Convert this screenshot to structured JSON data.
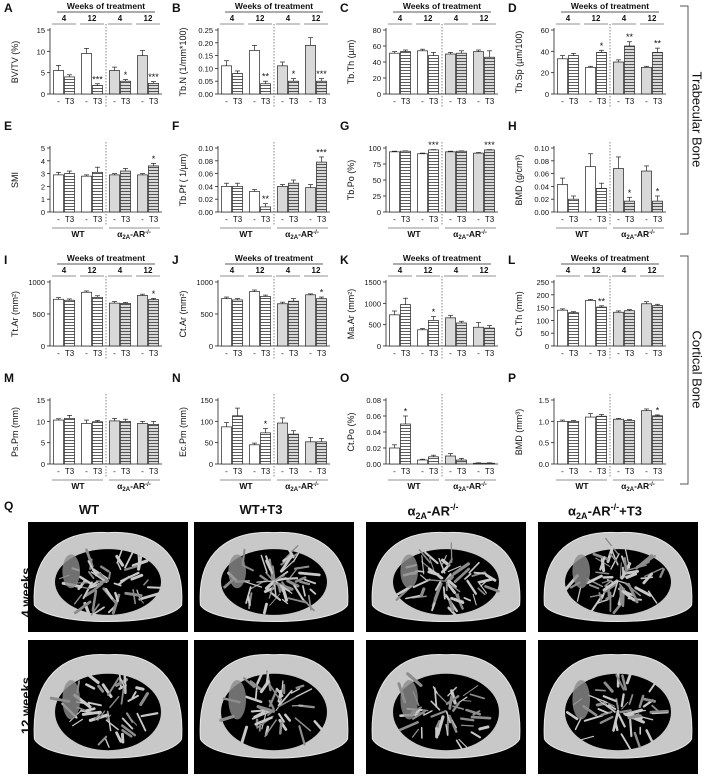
{
  "section_labels": {
    "trabecular": "Trabecular Bone",
    "cortical": "Cortical Bone"
  },
  "group_labels": {
    "wt": "WT",
    "ko": "α2A-AR-/-",
    "ko_base": "α",
    "ko_sub": "2A",
    "ko_mid": "-AR",
    "ko_sup": "-/-"
  },
  "timing": {
    "header": "Weeks of treatment",
    "w4": "4",
    "w12": "12"
  },
  "treatment_labels": {
    "ctrl": "-",
    "t3": "T3"
  },
  "colors": {
    "wt_bar": "#ffffff",
    "ko_bar": "#d9d9d9",
    "t3_hatch": "#333333",
    "axis": "#222222",
    "bone_light": "#c8c8c8",
    "bone_dark": "#8c8c8c",
    "background": "#000000"
  },
  "chart_data": [
    {
      "panel": "A",
      "type": "bar",
      "ylabel": "BV/TV (%)",
      "ylim": [
        0,
        15
      ],
      "yticks": [
        "0",
        "5",
        "10",
        "15"
      ],
      "has_weeks_header": true,
      "has_group_labels": false,
      "values": [
        5.5,
        4,
        9.5,
        2,
        5.5,
        3,
        9,
        2.5
      ],
      "errors": [
        1.2,
        0.5,
        1.2,
        0.4,
        0.8,
        0.4,
        1.2,
        0.4
      ],
      "sig": [
        "",
        "",
        "",
        "***",
        "",
        "*",
        "",
        "***"
      ]
    },
    {
      "panel": "B",
      "type": "bar",
      "ylabel": "Tb.N (1/mm*100)",
      "ylim": [
        0,
        0.25
      ],
      "yticks": [
        "0.00",
        "0.05",
        "0.10",
        "0.15",
        "0.20",
        "0.25"
      ],
      "has_weeks_header": true,
      "has_group_labels": false,
      "values": [
        0.11,
        0.08,
        0.17,
        0.04,
        0.11,
        0.05,
        0.19,
        0.05
      ],
      "errors": [
        0.02,
        0.01,
        0.02,
        0.01,
        0.015,
        0.01,
        0.03,
        0.01
      ],
      "sig": [
        "",
        "",
        "",
        "**",
        "",
        "*",
        "",
        "***"
      ]
    },
    {
      "panel": "C",
      "type": "bar",
      "ylabel": "Tb.Th (µm)",
      "ylim": [
        0,
        80
      ],
      "yticks": [
        "0",
        "20",
        "40",
        "60",
        "80"
      ],
      "has_weeks_header": true,
      "has_group_labels": false,
      "values": [
        51,
        53,
        54,
        48,
        50,
        51,
        53,
        46
      ],
      "errors": [
        2,
        2,
        2,
        4,
        2,
        3,
        2,
        8
      ],
      "sig": [
        "",
        "",
        "",
        "",
        "",
        "",
        "",
        ""
      ]
    },
    {
      "panel": "D",
      "type": "bar",
      "ylabel": "Tb.Sp (µm/100)",
      "ylim": [
        0,
        60
      ],
      "yticks": [
        "0",
        "20",
        "40",
        "60"
      ],
      "has_weeks_header": true,
      "has_group_labels": false,
      "values": [
        33,
        36,
        25,
        39,
        30,
        45,
        25,
        39
      ],
      "errors": [
        3,
        2,
        1,
        2,
        2,
        4,
        1,
        4
      ],
      "sig": [
        "",
        "",
        "",
        "*",
        "",
        "**",
        "",
        "**"
      ]
    },
    {
      "panel": "E",
      "type": "bar",
      "ylabel": "SMI",
      "ylim": [
        0,
        5
      ],
      "yticks": [
        "0",
        "1",
        "2",
        "3",
        "4",
        "5"
      ],
      "has_weeks_header": false,
      "has_group_labels": false,
      "values": [
        2.9,
        3.0,
        2.8,
        3.1,
        2.9,
        3.2,
        2.9,
        3.6
      ],
      "errors": [
        0.2,
        0.2,
        0.1,
        0.4,
        0.1,
        0.2,
        0.1,
        0.2
      ],
      "sig": [
        "",
        "",
        "",
        "",
        "",
        "",
        "",
        "*"
      ]
    },
    {
      "panel": "F",
      "type": "bar",
      "ylabel": "Tb.Pf ( 1/µm)",
      "ylim": [
        0,
        0.1
      ],
      "yticks": [
        "0.00",
        "0.02",
        "0.04",
        "0.06",
        "0.08",
        "0.10"
      ],
      "has_weeks_header": false,
      "has_group_labels": false,
      "values": [
        0.04,
        0.04,
        0.032,
        0.008,
        0.04,
        0.045,
        0.038,
        0.078
      ],
      "errors": [
        0.005,
        0.005,
        0.003,
        0.005,
        0.003,
        0.005,
        0.005,
        0.008
      ],
      "sig": [
        "",
        "",
        "",
        "**",
        "",
        "",
        "",
        "***"
      ]
    },
    {
      "panel": "G",
      "type": "bar",
      "ylabel": "Tb.Po (%)",
      "ylim": [
        0,
        100
      ],
      "yticks": [
        "0",
        "25",
        "50",
        "75",
        "100"
      ],
      "has_weeks_header": false,
      "has_group_labels": false,
      "values": [
        94,
        95,
        91,
        97,
        94,
        95,
        92,
        97
      ],
      "errors": [
        1,
        0.5,
        1,
        0.5,
        1,
        0.5,
        1,
        0.5
      ],
      "sig": [
        "",
        "",
        "",
        "***",
        "",
        "",
        "",
        "***"
      ]
    },
    {
      "panel": "H",
      "type": "bar",
      "ylabel": "BMD (g/cm³)",
      "ylim": [
        0,
        0.1
      ],
      "yticks": [
        "0.00",
        "0.02",
        "0.04",
        "0.06",
        "0.08",
        "0.10"
      ],
      "has_weeks_header": false,
      "has_group_labels": false,
      "values": [
        0.043,
        0.02,
        0.071,
        0.037,
        0.068,
        0.017,
        0.064,
        0.017
      ],
      "errors": [
        0.01,
        0.005,
        0.02,
        0.008,
        0.018,
        0.006,
        0.008,
        0.008
      ],
      "sig": [
        "",
        "",
        "",
        "",
        "",
        "*",
        "",
        "*"
      ]
    },
    {
      "panel": "I",
      "type": "bar",
      "ylabel": "Tt.Ar (mm²)",
      "ylim": [
        0,
        1000
      ],
      "yticks": [
        "0",
        "500",
        "1000"
      ],
      "has_weeks_header": true,
      "has_group_labels": false,
      "values": [
        730,
        715,
        840,
        760,
        670,
        665,
        790,
        725
      ],
      "errors": [
        25,
        20,
        20,
        25,
        25,
        15,
        20,
        20
      ],
      "sig": [
        "",
        "",
        "",
        "",
        "",
        "",
        "",
        "*"
      ]
    },
    {
      "panel": "J",
      "type": "bar",
      "ylabel": "Ct.Ar (mm²)",
      "ylim": [
        0,
        1000
      ],
      "yticks": [
        "0",
        "500",
        "1000"
      ],
      "has_weeks_header": true,
      "has_group_labels": false,
      "values": [
        740,
        720,
        850,
        775,
        660,
        700,
        800,
        740
      ],
      "errors": [
        25,
        20,
        25,
        20,
        25,
        40,
        15,
        25
      ],
      "sig": [
        "",
        "",
        "",
        "",
        "",
        "",
        "",
        "*"
      ]
    },
    {
      "panel": "K",
      "type": "bar",
      "ylabel": "Ma.Ar (mm²)",
      "ylim": [
        0,
        1500
      ],
      "yticks": [
        "0",
        "500",
        "1000",
        "1500"
      ],
      "has_weeks_header": true,
      "has_group_labels": false,
      "values": [
        730,
        970,
        380,
        600,
        660,
        540,
        440,
        420
      ],
      "errors": [
        90,
        150,
        30,
        90,
        60,
        40,
        110,
        60
      ],
      "sig": [
        "",
        "",
        "",
        "*",
        "",
        "",
        "",
        ""
      ]
    },
    {
      "panel": "L",
      "type": "bar",
      "ylabel": "Ct.Th (mm)",
      "ylim": [
        0,
        250
      ],
      "yticks": [
        "0",
        "50",
        "100",
        "150",
        "200",
        "250"
      ],
      "has_weeks_header": true,
      "has_group_labels": false,
      "values": [
        140,
        130,
        178,
        152,
        132,
        138,
        165,
        158
      ],
      "errors": [
        5,
        4,
        4,
        5,
        5,
        4,
        8,
        5
      ],
      "sig": [
        "",
        "",
        "",
        "**",
        "",
        "",
        "",
        ""
      ]
    },
    {
      "panel": "M",
      "type": "bar",
      "ylabel": "Ps.Pm (mm)",
      "ylim": [
        0,
        15
      ],
      "yticks": [
        "0",
        "5",
        "10",
        "15"
      ],
      "has_weeks_header": false,
      "has_group_labels": true,
      "values": [
        10.3,
        10.7,
        9.5,
        9.9,
        10.1,
        10.0,
        9.5,
        9.3
      ],
      "errors": [
        0.3,
        0.7,
        0.8,
        0.3,
        0.6,
        0.5,
        0.5,
        0.7
      ],
      "sig": [
        "",
        "",
        "",
        "",
        "",
        "",
        "",
        ""
      ]
    },
    {
      "panel": "N",
      "type": "bar",
      "ylabel": "Ec.Pm (mm)",
      "ylim": [
        0,
        150
      ],
      "yticks": [
        "0",
        "50",
        "100",
        "150"
      ],
      "has_weeks_header": false,
      "has_group_labels": true,
      "values": [
        87,
        113,
        45,
        73,
        96,
        70,
        52,
        52
      ],
      "errors": [
        10,
        18,
        4,
        10,
        12,
        8,
        10,
        8
      ],
      "sig": [
        "",
        "",
        "",
        "*",
        "",
        "",
        "",
        ""
      ]
    },
    {
      "panel": "O",
      "type": "bar",
      "ylabel": "Ct.Po (%)",
      "ylim": [
        0,
        0.08
      ],
      "yticks": [
        "0.00",
        "0.02",
        "0.04",
        "0.06",
        "0.08"
      ],
      "has_weeks_header": false,
      "has_group_labels": true,
      "values": [
        0.02,
        0.05,
        0.005,
        0.009,
        0.01,
        0.005,
        0.001,
        0.001
      ],
      "errors": [
        0.004,
        0.01,
        0.001,
        0.002,
        0.003,
        0.002,
        0.0005,
        0.0005
      ],
      "sig": [
        "",
        "*",
        "",
        "",
        "",
        "",
        "",
        ""
      ]
    },
    {
      "panel": "P",
      "type": "bar",
      "ylabel": "BMD (mm³)",
      "ylim": [
        0,
        1.5
      ],
      "yticks": [
        "0.0",
        "0.5",
        "1.0",
        "1.5"
      ],
      "has_weeks_header": false,
      "has_group_labels": true,
      "values": [
        1.0,
        1.0,
        1.1,
        1.12,
        1.05,
        1.02,
        1.25,
        1.13
      ],
      "errors": [
        0.03,
        0.02,
        0.08,
        0.04,
        0.02,
        0.02,
        0.04,
        0.02
      ],
      "sig": [
        "",
        "",
        "",
        "",
        "",
        "",
        "",
        "*"
      ]
    }
  ],
  "micro_ct": {
    "panel": "Q",
    "columns": [
      "WT",
      "WT+T3",
      "α2A-AR-/-",
      "α2A-AR-/-+T3"
    ],
    "rows": [
      "4 weeks",
      "12 weeks"
    ]
  }
}
